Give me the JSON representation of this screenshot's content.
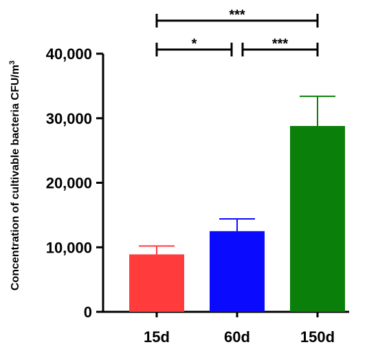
{
  "chart_data": {
    "type": "bar",
    "categories": [
      "15d",
      "60d",
      "150d"
    ],
    "values": [
      8900,
      12500,
      28800
    ],
    "error_upper": [
      10200,
      14400,
      33400
    ],
    "colors": [
      "#ff3b3b",
      "#0a0aff",
      "#0a7f0a"
    ],
    "ylabel": "Concentration of cultivable bacteria CFU/m",
    "ylabel_superscript": "3",
    "ylim": [
      0,
      40000
    ],
    "yticks": [
      0,
      10000,
      20000,
      30000,
      40000
    ],
    "ytick_labels": [
      "0",
      "10,000",
      "20,000",
      "30,000",
      "40,000"
    ],
    "grid": false,
    "significance": [
      {
        "from": 0,
        "to": 1,
        "label": "*",
        "level": 1
      },
      {
        "from": 1,
        "to": 2,
        "label": "***",
        "level": 1
      },
      {
        "from": 0,
        "to": 2,
        "label": "***",
        "level": 2
      }
    ]
  }
}
